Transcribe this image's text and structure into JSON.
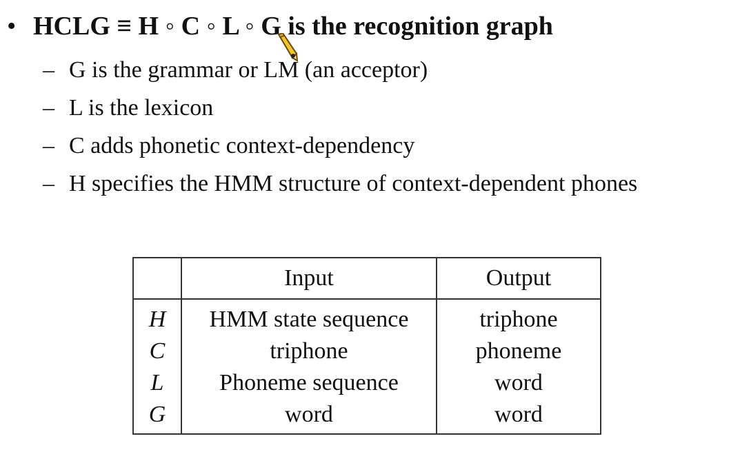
{
  "heading": {
    "bullet": "•",
    "text": "HCLG ≡ H ◦ C ◦ L ◦ G is the recognition graph"
  },
  "points": [
    {
      "dash": "–",
      "text": "G is the grammar or LM (an acceptor)"
    },
    {
      "dash": "–",
      "text": "L is the lexicon"
    },
    {
      "dash": "–",
      "text": "C adds phonetic context-dependency"
    },
    {
      "dash": "–",
      "text": "H specifies the HMM structure of context-dependent phones"
    }
  ],
  "table": {
    "headers": [
      "",
      "Input",
      "Output"
    ],
    "rows": [
      [
        "H",
        "HMM state sequence",
        "triphone"
      ],
      [
        "C",
        "triphone",
        "phoneme"
      ],
      [
        "L",
        "Phoneme sequence",
        "word"
      ],
      [
        "G",
        "word",
        "word"
      ]
    ]
  },
  "cursor": {
    "icon": "pencil-cursor-icon"
  }
}
